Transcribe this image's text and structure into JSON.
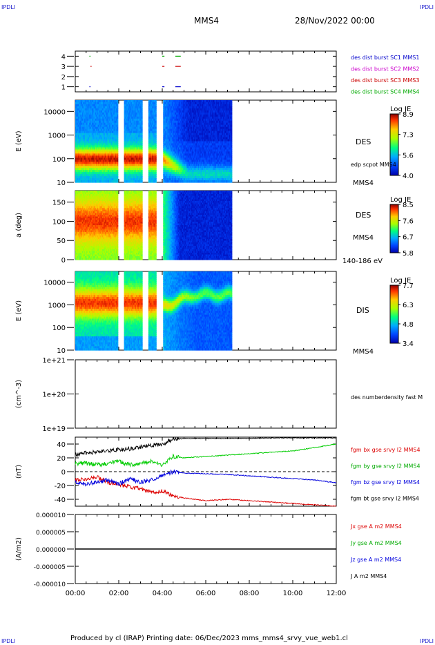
{
  "corner_labels": {
    "tl": "IPDLI",
    "tr": "IPDLI",
    "bl": "IPDLI",
    "br": "IPDLI"
  },
  "header": {
    "spacecraft": "MMS4",
    "date": "28/Nov/2022 00:00"
  },
  "footer": {
    "text": "Produced by cl (IRAP)   Printing date: 06/Dec/2023   mms_mms4_srvy_vue_web1.cl"
  },
  "x_axis": {
    "range_hours": [
      0,
      12
    ],
    "ticks": [
      "00:00",
      "02:00",
      "04:00",
      "06:00",
      "08:00",
      "10:00",
      "12:00"
    ]
  },
  "chart_data": [
    {
      "type": "scatter",
      "panel": "burst availability",
      "ylim": [
        0.5,
        4.5
      ],
      "ytick_labels": [
        "1",
        "2",
        "3",
        "4"
      ],
      "legend": [
        {
          "name": "des dist burst SC1 MMS1",
          "color": "#0000cc"
        },
        {
          "name": "des dist burst SC2 MMS2",
          "color": "#cc00cc"
        },
        {
          "name": "des dist burst SC3 MMS3",
          "color": "#cc0000"
        },
        {
          "name": "des dist burst SC4 MMS4",
          "color": "#00aa00"
        }
      ],
      "segments": [
        {
          "sc": 1,
          "x": [
            0.65,
            0.7
          ]
        },
        {
          "sc": 1,
          "x": [
            4.0,
            4.1
          ]
        },
        {
          "sc": 1,
          "x": [
            4.6,
            4.85
          ]
        },
        {
          "sc": 3,
          "x": [
            0.7,
            0.75
          ]
        },
        {
          "sc": 3,
          "x": [
            4.0,
            4.1
          ]
        },
        {
          "sc": 3,
          "x": [
            4.6,
            4.85
          ]
        },
        {
          "sc": 4,
          "x": [
            0.65,
            0.7
          ]
        },
        {
          "sc": 4,
          "x": [
            4.0,
            4.1
          ]
        },
        {
          "sc": 4,
          "x": [
            4.6,
            4.85
          ]
        }
      ]
    },
    {
      "type": "heatmap",
      "panel": "DES energy spectrogram",
      "ylabel": "E (eV)",
      "yscale": "log",
      "ylim": [
        10,
        30000
      ],
      "ytick_labels": [
        "10",
        "100",
        "1000",
        "10000"
      ],
      "right_labels": [
        "DES",
        "edp scpot MMS4",
        "MMS4"
      ],
      "colorbar": {
        "title": "Log JE",
        "range": [
          4.0,
          8.9
        ],
        "tick_labels": [
          "8.9",
          "7.3",
          "5.6",
          "4.0"
        ]
      },
      "data_x_range": [
        0,
        7.2
      ],
      "gaps": [
        [
          1.95,
          2.25
        ],
        [
          3.1,
          3.35
        ],
        [
          3.7,
          4.05
        ]
      ]
    },
    {
      "type": "heatmap",
      "panel": "DES pitch angle 140-186 eV",
      "ylabel": "a (deg)",
      "ylim": [
        0,
        180
      ],
      "ytick_labels": [
        "0",
        "50",
        "100",
        "150"
      ],
      "right_labels": [
        "DES",
        "MMS4",
        "140-186 eV"
      ],
      "colorbar": {
        "title": "Log JE",
        "range": [
          5.8,
          8.5
        ],
        "tick_labels": [
          "8.5",
          "7.6",
          "6.7",
          "5.8"
        ]
      },
      "data_x_range": [
        0,
        7.2
      ],
      "gaps": [
        [
          1.95,
          2.25
        ],
        [
          3.1,
          3.35
        ],
        [
          3.7,
          4.05
        ]
      ]
    },
    {
      "type": "heatmap",
      "panel": "DIS energy spectrogram",
      "ylabel": "E (eV)",
      "yscale": "log",
      "ylim": [
        10,
        30000
      ],
      "ytick_labels": [
        "10",
        "100",
        "1000",
        "10000"
      ],
      "right_labels": [
        "DIS",
        "MMS4"
      ],
      "colorbar": {
        "title": "Log JE",
        "range": [
          3.4,
          7.7
        ],
        "tick_labels": [
          "7.7",
          "6.3",
          "4.8",
          "3.4"
        ]
      },
      "data_x_range": [
        0,
        7.2
      ],
      "gaps": [
        [
          1.95,
          2.25
        ],
        [
          3.1,
          3.35
        ],
        [
          3.7,
          4.05
        ]
      ]
    },
    {
      "type": "line",
      "panel": "number density",
      "ylabel": "(cm^-3)",
      "yscale": "log",
      "ylim": [
        1e+19,
        1e+21
      ],
      "ytick_labels": [
        "1e+19",
        "1e+20",
        "1e+21"
      ],
      "series": [
        {
          "name": "des numberdensity fast M",
          "values": []
        }
      ]
    },
    {
      "type": "line",
      "panel": "magnetic field",
      "ylabel": "(nT)",
      "ylim": [
        -50,
        50
      ],
      "ytick_labels": [
        "-40",
        "-20",
        "0",
        "20",
        "40"
      ],
      "x": [
        0,
        0.5,
        1,
        1.5,
        2,
        2.5,
        3,
        3.5,
        4,
        4.5,
        5,
        6,
        7,
        8,
        9,
        10,
        11,
        12
      ],
      "series": [
        {
          "name": "fgm bx gse srvy l2 MMS4",
          "color": "#dd0000",
          "values": [
            -12,
            -10,
            -8,
            -15,
            -20,
            -22,
            -25,
            -30,
            -28,
            -35,
            -38,
            -42,
            -40,
            -42,
            -44,
            -46,
            -48,
            -50
          ]
        },
        {
          "name": "fgm by gse srvy l2 MMS4",
          "color": "#00cc00",
          "values": [
            12,
            12,
            10,
            12,
            15,
            10,
            12,
            15,
            10,
            22,
            20,
            22,
            24,
            26,
            28,
            30,
            35,
            40
          ]
        },
        {
          "name": "fgm bz gse srvy l2 MMS4",
          "color": "#0000dd",
          "values": [
            -15,
            -18,
            -15,
            -12,
            -18,
            -10,
            -15,
            -12,
            -5,
            0,
            -2,
            -3,
            -4,
            -6,
            -8,
            -10,
            -12,
            -16
          ]
        },
        {
          "name": "fgm bt gse srvy l2 MMS4",
          "color": "#000000",
          "values": [
            25,
            27,
            28,
            30,
            32,
            33,
            36,
            38,
            40,
            47,
            48,
            48,
            48,
            48,
            49,
            49,
            49,
            49
          ]
        }
      ]
    },
    {
      "type": "line",
      "panel": "current density",
      "ylabel": "(A/m2)",
      "ylim": [
        -1e-05,
        1e-05
      ],
      "ytick_labels": [
        "0.000010",
        "0.000005",
        "0.000000",
        "-0.000005",
        "-0.000010"
      ],
      "series": [
        {
          "name": "Jx gse A m2 MMS4",
          "color": "#dd0000",
          "values": [
            0,
            0
          ]
        },
        {
          "name": "Jy gse A m2 MMS4",
          "color": "#00cc00",
          "values": [
            0,
            0
          ]
        },
        {
          "name": "Jz gse A m2 MMS4",
          "color": "#0000dd",
          "values": [
            0,
            0
          ]
        },
        {
          "name": "J A m2 MMS4",
          "color": "#000000",
          "values": [
            0,
            0
          ]
        }
      ]
    }
  ]
}
